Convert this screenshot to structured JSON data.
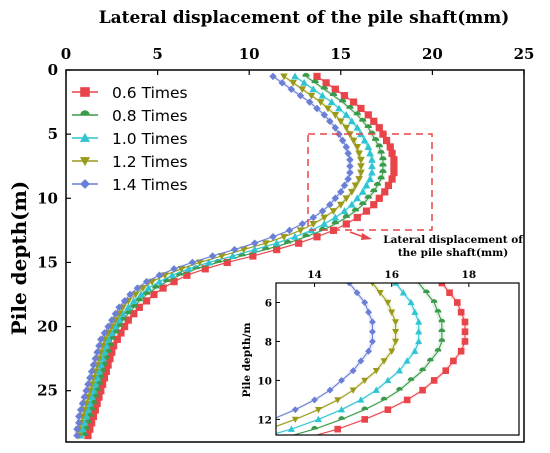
{
  "chart_data": [
    {
      "type": "line",
      "title": "Lateral displacement of the pile shaft(mm)",
      "ylabel": "Pile depth(m)",
      "xlim": [
        0,
        25
      ],
      "ylim": [
        0,
        29
      ],
      "y_inverted": true,
      "x_ticks": [
        "0",
        "5",
        "10",
        "15",
        "20",
        "25"
      ],
      "y_ticks": [
        "0",
        "5",
        "10",
        "15",
        "20",
        "25"
      ],
      "legend_position": "top-left",
      "annotation": "Lateral displacement of the pile shaft(mm)",
      "depths": [
        0.5,
        1.0,
        1.5,
        2.0,
        2.5,
        3.0,
        3.5,
        4.0,
        4.5,
        5.0,
        5.5,
        6.0,
        6.5,
        7.0,
        7.5,
        8.0,
        8.5,
        9.0,
        9.5,
        10.0,
        10.5,
        11.0,
        11.5,
        12.0,
        12.5,
        13.0,
        13.5,
        14.0,
        14.5,
        15.0,
        15.5,
        16.0,
        16.5,
        17.0,
        17.5,
        18.0,
        18.5,
        19.0,
        19.5,
        20.0,
        20.5,
        21.0,
        21.5,
        22.0,
        22.5,
        23.0,
        23.5,
        24.0,
        24.5,
        25.0,
        25.5,
        26.0,
        26.5,
        27.0,
        27.5,
        28.0,
        28.5
      ],
      "series": [
        {
          "name": "0.6 Times",
          "color": "#e8454a",
          "marker": "square",
          "values": [
            13.7,
            14.2,
            14.7,
            15.2,
            15.7,
            16.1,
            16.5,
            16.8,
            17.1,
            17.3,
            17.5,
            17.7,
            17.8,
            17.9,
            17.9,
            17.9,
            17.8,
            17.6,
            17.4,
            17.1,
            16.8,
            16.4,
            15.9,
            15.3,
            14.6,
            13.7,
            12.7,
            11.5,
            10.2,
            8.8,
            7.6,
            6.6,
            5.9,
            5.3,
            4.8,
            4.4,
            4.0,
            3.7,
            3.4,
            3.2,
            3.0,
            2.8,
            2.6,
            2.5,
            2.4,
            2.3,
            2.2,
            2.1,
            2.0,
            1.9,
            1.8,
            1.7,
            1.6,
            1.5,
            1.4,
            1.3,
            1.2
          ]
        },
        {
          "name": "0.8 Times",
          "color": "#3a9a4a",
          "marker": "semicircle",
          "values": [
            13.1,
            13.6,
            14.1,
            14.6,
            15.1,
            15.5,
            15.9,
            16.2,
            16.5,
            16.7,
            16.9,
            17.1,
            17.2,
            17.3,
            17.3,
            17.3,
            17.2,
            17.0,
            16.8,
            16.5,
            16.2,
            15.8,
            15.3,
            14.7,
            14.0,
            13.1,
            12.1,
            10.9,
            9.6,
            8.3,
            7.1,
            6.2,
            5.5,
            4.9,
            4.4,
            4.0,
            3.7,
            3.4,
            3.1,
            2.9,
            2.7,
            2.5,
            2.4,
            2.3,
            2.2,
            2.1,
            2.0,
            1.9,
            1.8,
            1.7,
            1.6,
            1.5,
            1.4,
            1.3,
            1.2,
            1.1,
            1.0
          ]
        },
        {
          "name": "1.0 Times",
          "color": "#2ec4d2",
          "marker": "triangle-up",
          "values": [
            12.5,
            13.0,
            13.5,
            14.0,
            14.5,
            14.9,
            15.3,
            15.6,
            15.9,
            16.1,
            16.3,
            16.5,
            16.6,
            16.7,
            16.7,
            16.7,
            16.6,
            16.4,
            16.2,
            15.9,
            15.6,
            15.2,
            14.7,
            14.1,
            13.4,
            12.5,
            11.5,
            10.3,
            9.1,
            7.8,
            6.7,
            5.8,
            5.1,
            4.5,
            4.1,
            3.7,
            3.4,
            3.1,
            2.9,
            2.7,
            2.5,
            2.3,
            2.2,
            2.1,
            2.0,
            1.9,
            1.8,
            1.7,
            1.6,
            1.5,
            1.4,
            1.3,
            1.2,
            1.1,
            1.0,
            0.9,
            0.8
          ]
        },
        {
          "name": "1.2 Times",
          "color": "#9a9a1a",
          "marker": "triangle-down",
          "values": [
            11.9,
            12.4,
            12.9,
            13.4,
            13.9,
            14.3,
            14.7,
            15.0,
            15.3,
            15.5,
            15.7,
            15.9,
            16.0,
            16.1,
            16.1,
            16.1,
            16.0,
            15.8,
            15.6,
            15.3,
            15.0,
            14.6,
            14.1,
            13.5,
            12.8,
            11.9,
            10.9,
            9.7,
            8.5,
            7.3,
            6.3,
            5.4,
            4.7,
            4.2,
            3.8,
            3.4,
            3.1,
            2.9,
            2.7,
            2.5,
            2.3,
            2.1,
            2.0,
            1.9,
            1.8,
            1.7,
            1.6,
            1.5,
            1.4,
            1.3,
            1.2,
            1.1,
            1.0,
            0.9,
            0.8,
            0.7,
            0.7
          ]
        },
        {
          "name": "1.4 Times",
          "color": "#6b7fd6",
          "marker": "diamond",
          "values": [
            11.3,
            11.8,
            12.3,
            12.8,
            13.3,
            13.7,
            14.1,
            14.4,
            14.7,
            14.9,
            15.1,
            15.3,
            15.4,
            15.5,
            15.5,
            15.5,
            15.4,
            15.2,
            15.0,
            14.7,
            14.4,
            14.0,
            13.5,
            12.9,
            12.2,
            11.3,
            10.3,
            9.2,
            8.0,
            6.9,
            5.9,
            5.1,
            4.4,
            3.9,
            3.5,
            3.2,
            2.9,
            2.7,
            2.5,
            2.3,
            2.1,
            1.9,
            1.8,
            1.7,
            1.6,
            1.5,
            1.4,
            1.3,
            1.2,
            1.1,
            1.0,
            0.9,
            0.8,
            0.7,
            0.7,
            0.6,
            0.6
          ]
        }
      ]
    },
    {
      "type": "line",
      "title": "",
      "ylabel": "Pile depth/m",
      "xlim": [
        13,
        19.3
      ],
      "ylim": [
        5,
        12.8
      ],
      "y_inverted": true,
      "x_ticks": [
        "14",
        "16",
        "18"
      ],
      "y_ticks": [
        "6",
        "8",
        "10",
        "12"
      ]
    }
  ]
}
